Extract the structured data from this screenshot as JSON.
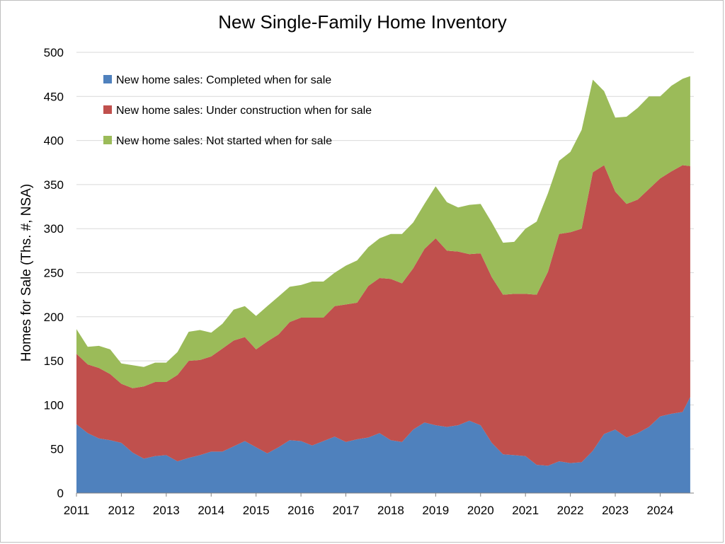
{
  "chart_data": {
    "type": "area",
    "stacked": true,
    "title": "New Single-Family Home Inventory",
    "xlabel": "",
    "ylabel": "Homes for Sale (Ths. #, NSA)",
    "ylim": [
      0,
      500
    ],
    "yticks": [
      0,
      50,
      100,
      150,
      200,
      250,
      300,
      350,
      400,
      450,
      500
    ],
    "xlim": [
      2011,
      2024.75
    ],
    "xticks": [
      "2011",
      "2012",
      "2013",
      "2014",
      "2015",
      "2016",
      "2017",
      "2018",
      "2019",
      "2020",
      "2021",
      "2022",
      "2023",
      "2024"
    ],
    "grid": "horizontal",
    "legend_position": "top-left",
    "x": [
      2011.0,
      2011.25,
      2011.5,
      2011.75,
      2012.0,
      2012.25,
      2012.5,
      2012.75,
      2013.0,
      2013.25,
      2013.5,
      2013.75,
      2014.0,
      2014.25,
      2014.5,
      2014.75,
      2015.0,
      2015.25,
      2015.5,
      2015.75,
      2016.0,
      2016.25,
      2016.5,
      2016.75,
      2017.0,
      2017.25,
      2017.5,
      2017.75,
      2018.0,
      2018.25,
      2018.5,
      2018.75,
      2019.0,
      2019.25,
      2019.5,
      2019.75,
      2020.0,
      2020.25,
      2020.5,
      2020.75,
      2021.0,
      2021.25,
      2021.5,
      2021.75,
      2022.0,
      2022.25,
      2022.5,
      2022.75,
      2023.0,
      2023.25,
      2023.5,
      2023.75,
      2024.0,
      2024.25,
      2024.5,
      2024.67
    ],
    "series": [
      {
        "name": "New home sales: Completed when for sale",
        "color": "#4f81bd",
        "values": [
          78,
          68,
          62,
          60,
          57,
          46,
          39,
          42,
          43,
          36,
          40,
          43,
          47,
          47,
          53,
          59,
          52,
          45,
          52,
          60,
          59,
          54,
          59,
          64,
          58,
          61,
          63,
          68,
          60,
          58,
          72,
          80,
          77,
          75,
          77,
          82,
          77,
          57,
          44,
          43,
          42,
          32,
          31,
          36,
          34,
          35,
          48,
          67,
          72,
          63,
          68,
          75,
          87,
          90,
          92,
          109
        ]
      },
      {
        "name": "New home sales: Under construction when for sale",
        "color": "#c0504d",
        "values": [
          80,
          78,
          80,
          75,
          67,
          73,
          82,
          84,
          83,
          98,
          110,
          108,
          108,
          117,
          120,
          118,
          111,
          127,
          128,
          134,
          140,
          145,
          140,
          148,
          156,
          155,
          172,
          176,
          183,
          180,
          183,
          197,
          212,
          200,
          197,
          189,
          195,
          188,
          181,
          183,
          184,
          193,
          220,
          258,
          262,
          265,
          316,
          305,
          270,
          265,
          265,
          270,
          270,
          275,
          280,
          262
        ]
      },
      {
        "name": "New home sales: Not started when for sale",
        "color": "#9bbb59",
        "values": [
          28,
          20,
          25,
          28,
          23,
          26,
          22,
          22,
          22,
          26,
          33,
          34,
          27,
          28,
          35,
          35,
          38,
          40,
          43,
          40,
          37,
          41,
          41,
          38,
          44,
          48,
          44,
          45,
          51,
          56,
          52,
          51,
          59,
          55,
          50,
          56,
          56,
          62,
          59,
          59,
          74,
          83,
          89,
          83,
          91,
          112,
          105,
          84,
          84,
          99,
          104,
          105,
          93,
          97,
          98,
          102
        ]
      }
    ]
  }
}
